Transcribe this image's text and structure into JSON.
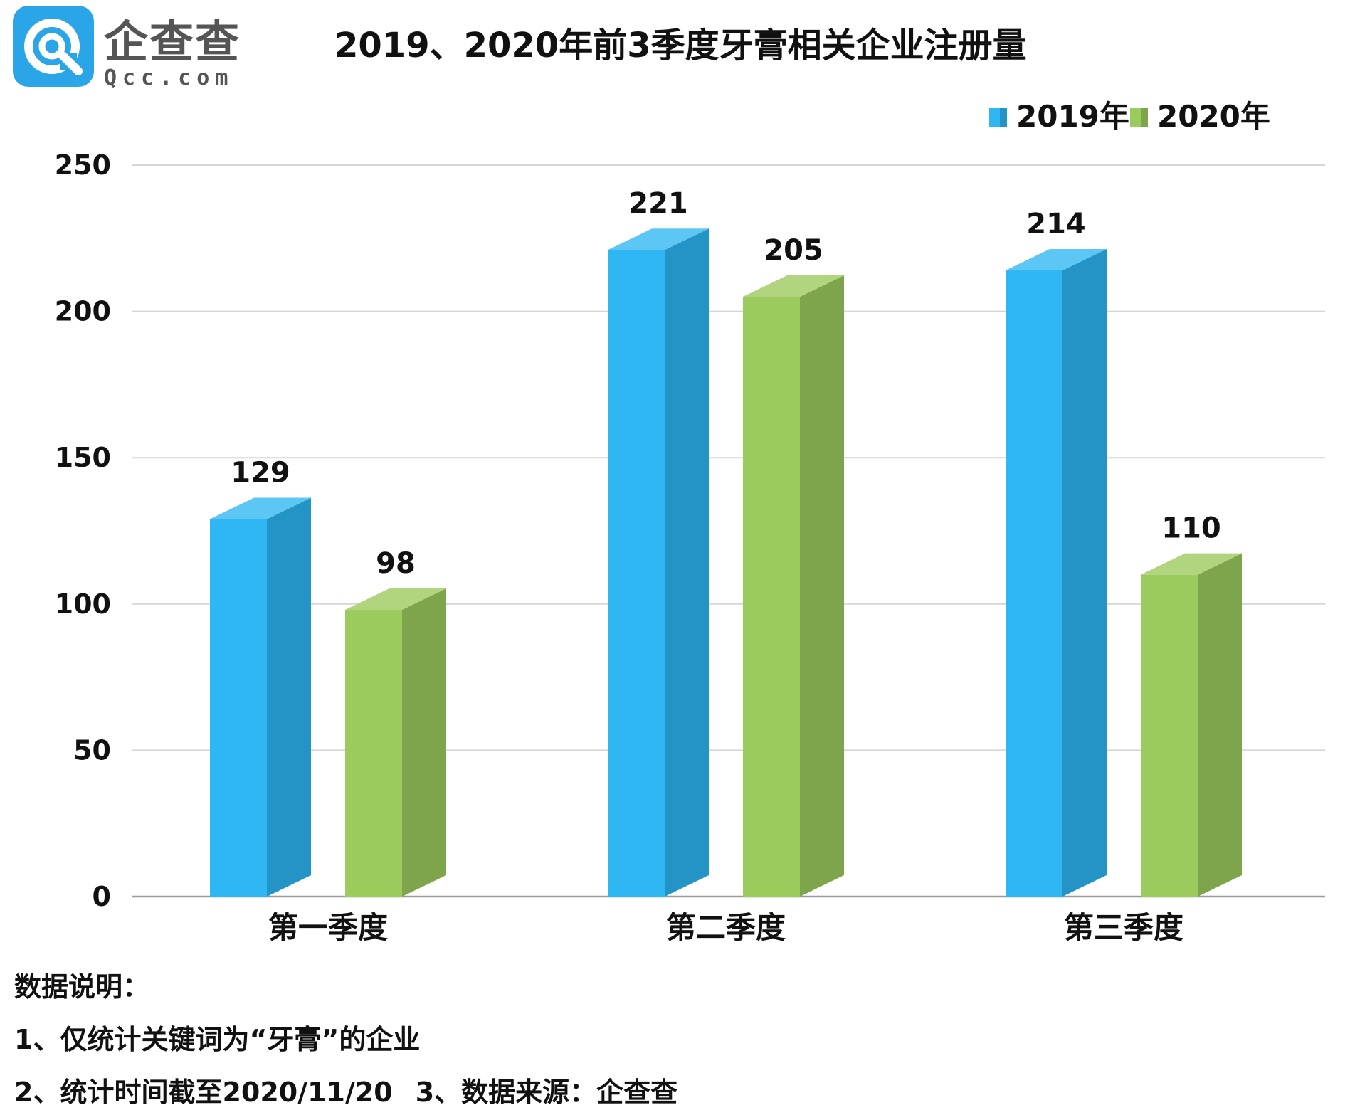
{
  "logo": {
    "name": "企查查",
    "url": "Qcc.com",
    "colors": {
      "icon": "#2aa5e8",
      "text": "#555555"
    }
  },
  "chart_data": {
    "type": "bar",
    "title": "2019、2020年前3季度牙膏相关企业注册量",
    "categories": [
      "第一季度",
      "第二季度",
      "第三季度"
    ],
    "series": [
      {
        "name": "2019年",
        "values": [
          129,
          221,
          214
        ],
        "color": "#2fb7f3",
        "side_color": "#2494c6",
        "top_color": "#5cc7f5"
      },
      {
        "name": "2020年",
        "values": [
          98,
          205,
          110
        ],
        "color": "#9ccb5d",
        "side_color": "#7ea54b",
        "top_color": "#b1d57f"
      }
    ],
    "ylim": [
      0,
      250
    ],
    "yticks": [
      "0",
      "50",
      "100",
      "150",
      "200",
      "250"
    ],
    "grid": true,
    "legend_position": "top-right",
    "bar_style": "3d-column"
  },
  "notes": {
    "heading": "数据说明：",
    "line1": "1、仅统计关键词为“牙膏”的企业",
    "line2a": "2、统计时间截至2020/11/20",
    "line2b": "3、数据来源：企查查"
  }
}
